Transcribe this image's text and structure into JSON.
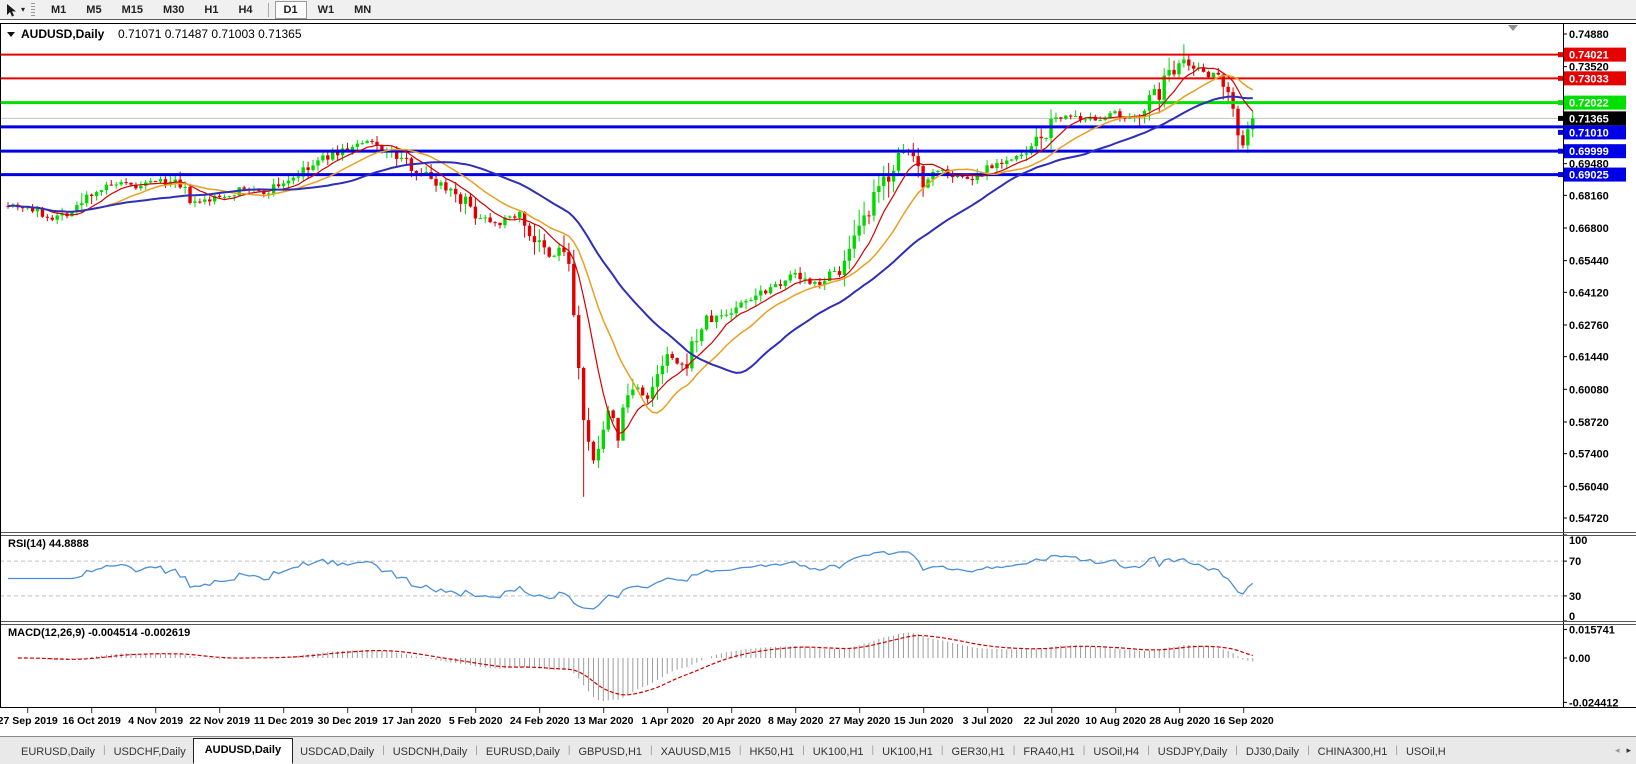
{
  "toolbar": {
    "timeframes": [
      "M1",
      "M5",
      "M15",
      "M30",
      "H1",
      "H4",
      "D1",
      "W1",
      "MN"
    ],
    "active_timeframe": "D1",
    "cursor_tool_icon": "chart-cursor-icon",
    "dropdown_icon": "chevron-down-icon"
  },
  "chart": {
    "symbol_label": "AUDUSD,Daily",
    "ohlc_label": "0.71071 0.71487 0.71003 0.71365"
  },
  "chart_data": {
    "type": "candlestick",
    "symbol": "AUDUSD",
    "timeframe": "Daily",
    "quote": {
      "open": 0.71071,
      "high": 0.71487,
      "low": 0.71003,
      "close": 0.71365
    },
    "current_price": 0.71365,
    "up_color": "#00d800",
    "down_color": "#e00000",
    "current_price_line_color": "#c0c0c0",
    "y_ticks": [
      0.7488,
      0.7352,
      0.7216,
      0.7084,
      0.6948,
      0.6816,
      0.668,
      0.6544,
      0.6412,
      0.6276,
      0.6144,
      0.6008,
      0.5872,
      0.574,
      0.5604,
      0.5472
    ],
    "ylim": [
      0.5404,
      0.7536
    ],
    "x_labels": [
      "27 Sep 2019",
      "16 Oct 2019",
      "4 Nov 2019",
      "22 Nov 2019",
      "11 Dec 2019",
      "30 Dec 2019",
      "17 Jan 2020",
      "5 Feb 2020",
      "24 Feb 2020",
      "13 Mar 2020",
      "1 Apr 2020",
      "20 Apr 2020",
      "8 May 2020",
      "27 May 2020",
      "15 Jun 2020",
      "3 Jul 2020",
      "22 Jul 2020",
      "10 Aug 2020",
      "28 Aug 2020",
      "16 Sep 2020"
    ],
    "horizontal_lines": [
      {
        "price": 0.74021,
        "color": "#e60000",
        "width": 2
      },
      {
        "price": 0.73033,
        "color": "#e60000",
        "width": 2
      },
      {
        "price": 0.72022,
        "color": "#00e000",
        "width": 3
      },
      {
        "price": 0.7101,
        "color": "#0000e6",
        "width": 3
      },
      {
        "price": 0.69999,
        "color": "#0000e6",
        "width": 3
      },
      {
        "price": 0.69025,
        "color": "#0000e6",
        "width": 3
      }
    ],
    "moving_averages": [
      {
        "period": 8,
        "color": "#d40000",
        "width": 1.2
      },
      {
        "period": 16,
        "color": "#e8a020",
        "width": 1.5
      },
      {
        "period": 34,
        "color": "#2e2eb8",
        "width": 2
      }
    ],
    "price_path": [
      [
        0.0,
        0.678
      ],
      [
        0.016,
        0.6765
      ],
      [
        0.035,
        0.672
      ],
      [
        0.055,
        0.676
      ],
      [
        0.067,
        0.683
      ],
      [
        0.09,
        0.6865
      ],
      [
        0.105,
        0.6845
      ],
      [
        0.119,
        0.688
      ],
      [
        0.135,
        0.686
      ],
      [
        0.15,
        0.678
      ],
      [
        0.17,
        0.681
      ],
      [
        0.19,
        0.6845
      ],
      [
        0.205,
        0.6825
      ],
      [
        0.221,
        0.687
      ],
      [
        0.24,
        0.692
      ],
      [
        0.258,
        0.6985
      ],
      [
        0.273,
        0.701
      ],
      [
        0.29,
        0.704
      ],
      [
        0.305,
        0.7
      ],
      [
        0.324,
        0.694
      ],
      [
        0.345,
        0.687
      ],
      [
        0.36,
        0.683
      ],
      [
        0.375,
        0.674
      ],
      [
        0.395,
        0.67
      ],
      [
        0.41,
        0.674
      ],
      [
        0.427,
        0.66
      ],
      [
        0.437,
        0.6545
      ],
      [
        0.445,
        0.662
      ],
      [
        0.452,
        0.648
      ],
      [
        0.458,
        0.612
      ],
      [
        0.464,
        0.578
      ],
      [
        0.47,
        0.57
      ],
      [
        0.476,
        0.584
      ],
      [
        0.483,
        0.592
      ],
      [
        0.49,
        0.581
      ],
      [
        0.497,
        0.598
      ],
      [
        0.505,
        0.602
      ],
      [
        0.515,
        0.596
      ],
      [
        0.53,
        0.615
      ],
      [
        0.542,
        0.609
      ],
      [
        0.558,
        0.628
      ],
      [
        0.57,
        0.631
      ],
      [
        0.581,
        0.633
      ],
      [
        0.595,
        0.639
      ],
      [
        0.61,
        0.643
      ],
      [
        0.625,
        0.647
      ],
      [
        0.632,
        0.649
      ],
      [
        0.645,
        0.644
      ],
      [
        0.66,
        0.648
      ],
      [
        0.672,
        0.653
      ],
      [
        0.684,
        0.665
      ],
      [
        0.695,
        0.678
      ],
      [
        0.706,
        0.69
      ],
      [
        0.716,
        0.698
      ],
      [
        0.726,
        0.7
      ],
      [
        0.735,
        0.687
      ],
      [
        0.748,
        0.693
      ],
      [
        0.76,
        0.69
      ],
      [
        0.775,
        0.688
      ],
      [
        0.787,
        0.694
      ],
      [
        0.8,
        0.696
      ],
      [
        0.815,
        0.6975
      ],
      [
        0.828,
        0.704
      ],
      [
        0.838,
        0.711
      ],
      [
        0.85,
        0.7155
      ],
      [
        0.862,
        0.712
      ],
      [
        0.875,
        0.714
      ],
      [
        0.889,
        0.7155
      ],
      [
        0.9,
        0.712
      ],
      [
        0.912,
        0.7185
      ],
      [
        0.925,
        0.725
      ],
      [
        0.935,
        0.734
      ],
      [
        0.944,
        0.74
      ],
      [
        0.951,
        0.733
      ],
      [
        0.958,
        0.7355
      ],
      [
        0.966,
        0.731
      ],
      [
        0.974,
        0.733
      ],
      [
        0.981,
        0.726
      ],
      [
        0.987,
        0.709
      ],
      [
        0.992,
        0.703
      ],
      [
        1.0,
        0.7136
      ]
    ],
    "wick_events": [
      {
        "t": 0.464,
        "low": 0.556
      },
      {
        "t": 0.944,
        "high": 0.7445
      },
      {
        "t": 0.992,
        "low": 0.7029
      }
    ]
  },
  "rsi": {
    "label": "RSI(14) 44.8888",
    "value": 44.8888,
    "period": 14,
    "levels": [
      100,
      70,
      30,
      0
    ],
    "dashed_levels": [
      70,
      30
    ],
    "line_color": "#4a90d8"
  },
  "macd": {
    "label": "MACD(12,26,9) -0.004514 -0.002619",
    "macd_value": -0.004514,
    "signal_value": -0.002619,
    "params": [
      12,
      26,
      9
    ],
    "axis_labels": [
      "0.015741",
      "0.00",
      "-0.024412"
    ],
    "axis_values": [
      0.015741,
      0.0,
      -0.024412
    ],
    "histogram_color": "#9c9c9c",
    "signal_color": "#d00000"
  },
  "tabs": {
    "items": [
      "EURUSD,Daily",
      "USDCHF,Daily",
      "AUDUSD,Daily",
      "USDCAD,Daily",
      "USDCNH,Daily",
      "EURUSD,Daily",
      "GBPUSD,H1",
      "XAUUSD,M15",
      "HK50,H1",
      "UK100,H1",
      "UK100,H1",
      "GER30,H1",
      "FRA40,H1",
      "USOil,H4",
      "USDJPY,Daily",
      "DJ30,Daily",
      "CHINA300,H1",
      "USOil,H"
    ],
    "active_index": 2,
    "scroll_left_icon": "◂",
    "scroll_right_icon": "▸"
  }
}
